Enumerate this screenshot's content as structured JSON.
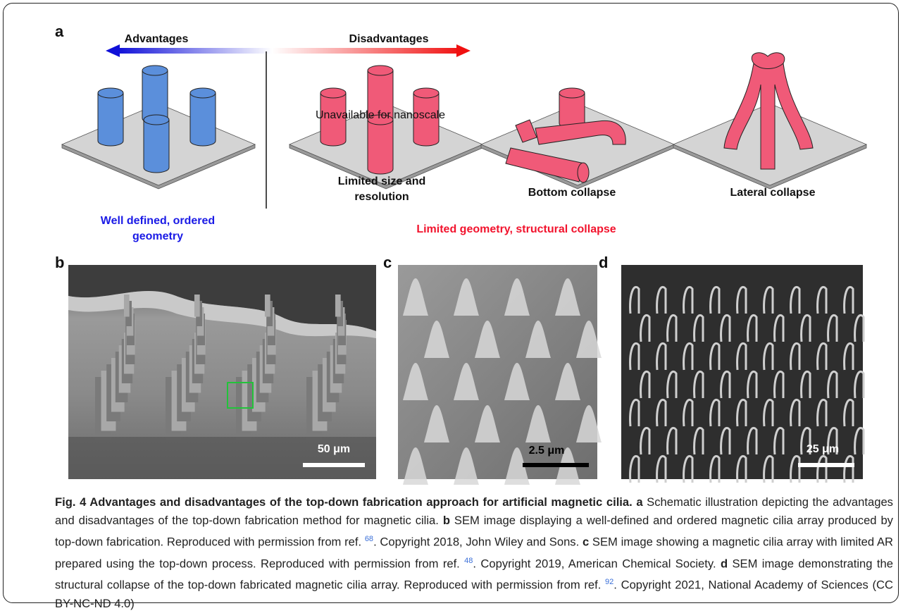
{
  "panels": {
    "a": {
      "label": "a",
      "advantages": "Advantages",
      "disadvantages": "Disadvantages",
      "nanoscale": "Unavailable for nanoscale",
      "limited_size": [
        "Limited size and",
        "resolution"
      ],
      "bottom_collapse": "Bottom collapse",
      "lateral_collapse": "Lateral collapse",
      "well_defined": [
        "Well defined, ordered",
        "geometry"
      ],
      "limited_geometry": "Limited geometry, structural collapse"
    },
    "b": {
      "label": "b",
      "scale_bar": "50 μm"
    },
    "c": {
      "label": "c",
      "scale_bar": "2.5 μm"
    },
    "d": {
      "label": "d",
      "scale_bar": "25 μm"
    }
  },
  "caption": {
    "title": "Fig. 4 Advantages and disadvantages of the top-down fabrication approach for artificial magnetic cilia.",
    "a_label": "a",
    "a_text": "Schematic illustration depicting the advantages and disadvantages of the top-down fabrication method for magnetic cilia.",
    "b_label": "b",
    "b_text": "SEM image displaying a well-defined and ordered magnetic cilia array produced by top-down fabrication. Reproduced with permission from ref.",
    "b_ref": "68",
    "b_copy": ". Copyright 2018, John Wiley and Sons.",
    "c_label": "c",
    "c_text": "SEM image showing a magnetic cilia array with limited AR prepared using the top-down process. Reproduced with permission from ref.",
    "c_ref": "48",
    "c_copy": ". Copyright 2019, American Chemical Society.",
    "d_label": "d",
    "d_text": "SEM image demonstrating the structural collapse of the top-down fabricated magnetic cilia array. Reproduced with permission from ref.",
    "d_ref": "92",
    "d_copy": ". Copyright 2021, National Academy of Sciences (CC BY-NC-ND 4.0)"
  }
}
